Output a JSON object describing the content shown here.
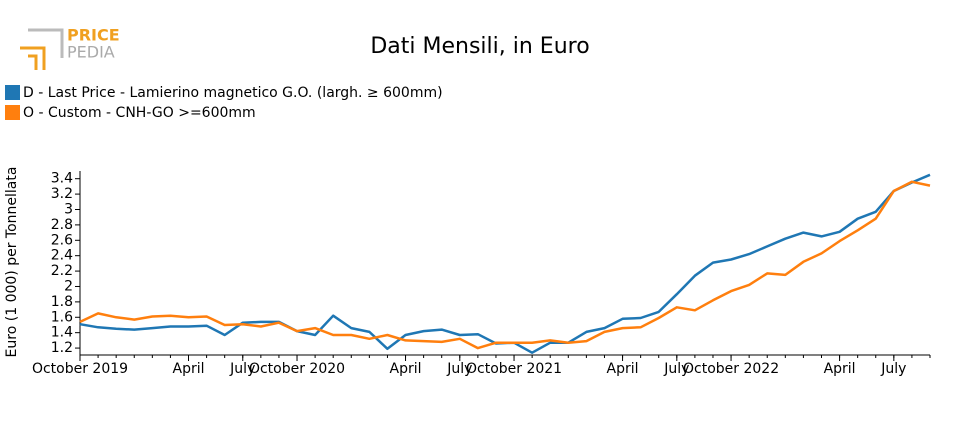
{
  "logo": {
    "line1": "PRICE",
    "line2": "PEDIA"
  },
  "chart_data": {
    "type": "line",
    "title": "Dati Mensili, in Euro",
    "y_label": "Euro (1 000) per Tonnellata",
    "x": [
      "2019-10",
      "2019-11",
      "2019-12",
      "2020-01",
      "2020-02",
      "2020-03",
      "2020-04",
      "2020-05",
      "2020-06",
      "2020-07",
      "2020-08",
      "2020-09",
      "2020-10",
      "2020-11",
      "2020-12",
      "2021-01",
      "2021-02",
      "2021-03",
      "2021-04",
      "2021-05",
      "2021-06",
      "2021-07",
      "2021-08",
      "2021-09",
      "2021-10",
      "2021-11",
      "2021-12",
      "2022-01",
      "2022-02",
      "2022-03",
      "2022-04",
      "2022-05",
      "2022-06",
      "2022-07",
      "2022-08",
      "2022-09",
      "2022-10",
      "2022-11",
      "2022-12",
      "2023-01",
      "2023-02",
      "2023-03",
      "2023-04",
      "2023-05",
      "2023-06",
      "2023-07",
      "2023-08",
      "2023-09"
    ],
    "series": [
      {
        "name": "D - Last Price - Lamierino magnetico G.O. (largh. ≥ 600mm)",
        "color": "#1f77b4",
        "values": [
          1.51,
          1.47,
          1.45,
          1.44,
          1.46,
          1.48,
          1.48,
          1.49,
          1.37,
          1.53,
          1.54,
          1.54,
          1.42,
          1.37,
          1.62,
          1.46,
          1.41,
          1.19,
          1.37,
          1.42,
          1.44,
          1.37,
          1.38,
          1.26,
          1.27,
          1.14,
          1.27,
          1.27,
          1.41,
          1.46,
          1.58,
          1.59,
          1.67,
          1.9,
          2.14,
          2.31,
          2.35,
          2.42,
          2.52,
          2.62,
          2.7,
          2.65,
          2.71,
          2.88,
          2.97,
          3.24,
          3.35,
          3.45
        ]
      },
      {
        "name": "O - Custom - CNH-GO >=600mm",
        "color": "#ff7f0e",
        "values": [
          1.54,
          1.65,
          1.6,
          1.57,
          1.61,
          1.62,
          1.6,
          1.61,
          1.5,
          1.51,
          1.48,
          1.53,
          1.42,
          1.46,
          1.37,
          1.37,
          1.32,
          1.37,
          1.3,
          1.29,
          1.28,
          1.32,
          1.2,
          1.27,
          1.27,
          1.27,
          1.3,
          1.27,
          1.29,
          1.41,
          1.46,
          1.47,
          1.59,
          1.73,
          1.69,
          1.82,
          1.94,
          2.02,
          2.17,
          2.15,
          2.32,
          2.43,
          2.59,
          2.73,
          2.88,
          3.24,
          3.36,
          3.31
        ]
      }
    ],
    "xlim": [
      "2019-10",
      "2023-09"
    ],
    "xticks": [
      {
        "value": "2019-10",
        "label": "October 2019"
      },
      {
        "value": "2020-04",
        "label": "April"
      },
      {
        "value": "2020-07",
        "label": "July"
      },
      {
        "value": "2020-10",
        "label": "October 2020"
      },
      {
        "value": "2021-04",
        "label": "April"
      },
      {
        "value": "2021-07",
        "label": "July"
      },
      {
        "value": "2021-10",
        "label": "October 2021"
      },
      {
        "value": "2022-04",
        "label": "April"
      },
      {
        "value": "2022-07",
        "label": "July"
      },
      {
        "value": "2022-10",
        "label": "October 2022"
      },
      {
        "value": "2023-04",
        "label": "April"
      },
      {
        "value": "2023-07",
        "label": "July"
      }
    ],
    "ylim": [
      1.11,
      3.5
    ],
    "yticks": [
      1.2,
      1.4,
      1.6,
      1.8,
      2.0,
      2.2,
      2.4,
      2.6,
      2.8,
      3.0,
      3.2,
      3.4
    ],
    "grid": false
  }
}
